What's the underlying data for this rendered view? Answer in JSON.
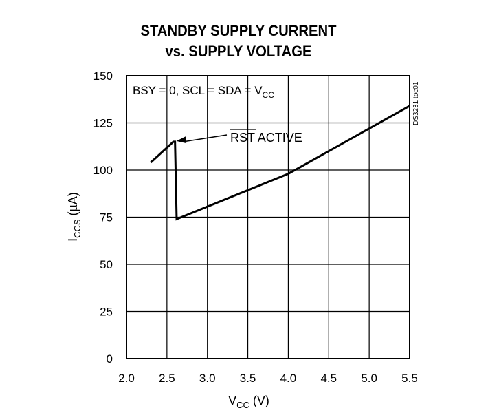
{
  "chart_data": {
    "type": "line",
    "title_line1": "STANDBY SUPPLY CURRENT",
    "title_line2": "vs. SUPPLY VOLTAGE",
    "xlabel_main": "V",
    "xlabel_sub": "CC",
    "xlabel_unit": " (V)",
    "ylabel_main": "I",
    "ylabel_sub": "CCS",
    "ylabel_unit": " (µA)",
    "condition_main": "BSY = 0, SCL = SDA = V",
    "condition_sub": "CC",
    "annotation_over": "RST",
    "annotation_rest": " ACTIVE",
    "annotation_target": {
      "x": 2.6,
      "y": 115
    },
    "figure_id": "DS3231 toc01",
    "xlim": [
      2.0,
      5.5
    ],
    "ylim": [
      0,
      150
    ],
    "xticks": [
      "2.0",
      "2.5",
      "3.0",
      "3.5",
      "4.0",
      "4.5",
      "5.0",
      "5.5"
    ],
    "yticks": [
      "0",
      "25",
      "50",
      "75",
      "100",
      "125",
      "150"
    ],
    "grid": true,
    "series": [
      {
        "x": [
          2.3,
          2.58,
          2.6,
          2.62,
          4.0,
          5.5
        ],
        "y": [
          104,
          115,
          115,
          74,
          98,
          134
        ]
      }
    ]
  }
}
